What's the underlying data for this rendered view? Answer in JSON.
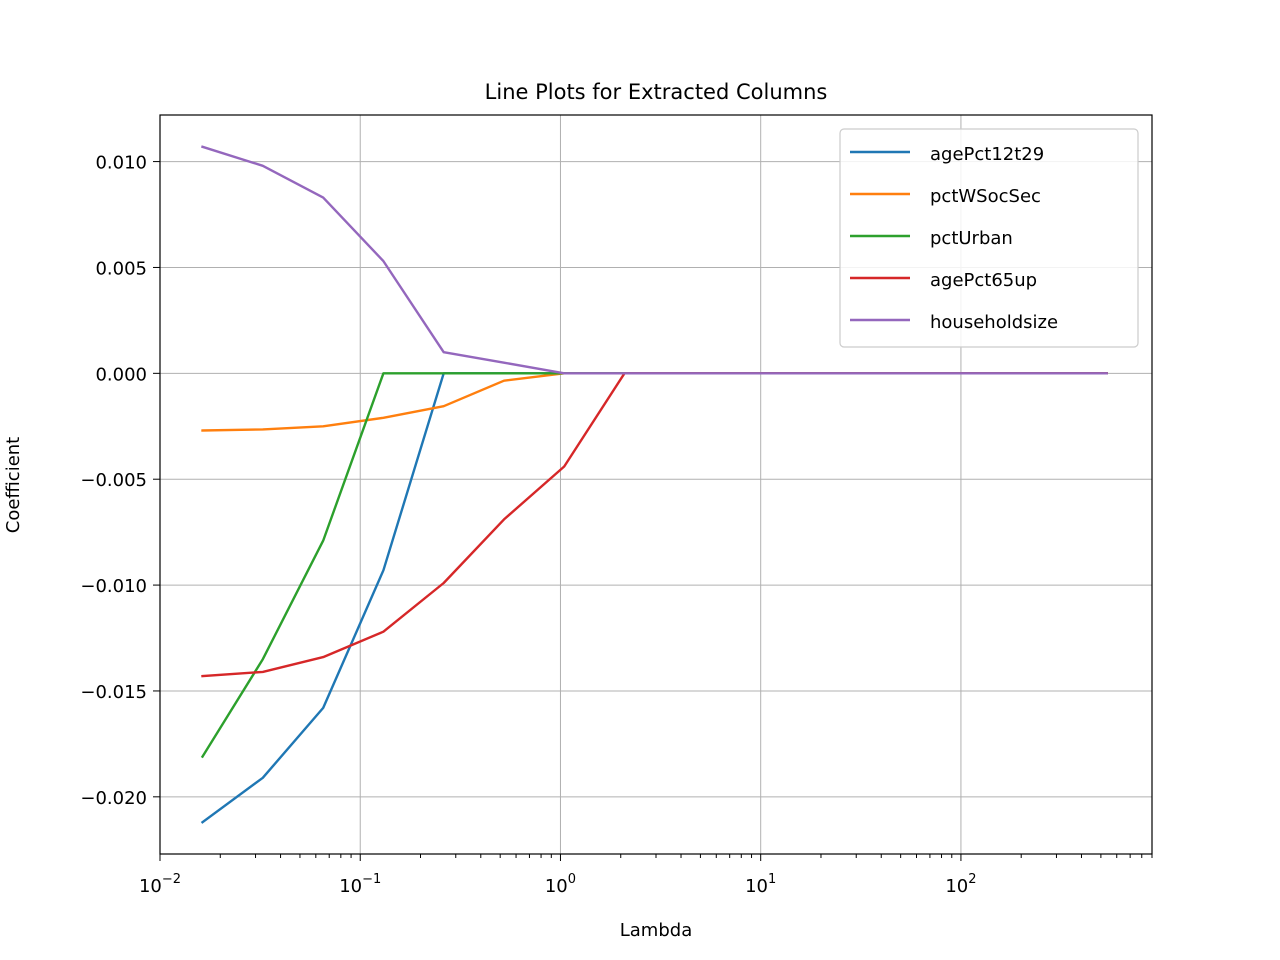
{
  "chart_data": {
    "type": "line",
    "title": "Line Plots for Extracted Columns",
    "xlabel": "Lambda",
    "ylabel": "Coefficient",
    "x_scale": "log",
    "xlim": [
      0.01,
      900
    ],
    "ylim": [
      -0.0227,
      0.0122
    ],
    "grid": true,
    "legend_position": "top-right",
    "x_ticks": [
      {
        "base": "10",
        "exp": "−2",
        "value": 0.01
      },
      {
        "base": "10",
        "exp": "−1",
        "value": 0.1
      },
      {
        "base": "10",
        "exp": "0",
        "value": 1
      },
      {
        "base": "10",
        "exp": "1",
        "value": 10
      },
      {
        "base": "10",
        "exp": "2",
        "value": 100
      }
    ],
    "y_ticks": [
      {
        "label": "0.010",
        "value": 0.01
      },
      {
        "label": "0.005",
        "value": 0.005
      },
      {
        "label": "0.000",
        "value": 0.0
      },
      {
        "label": "−0.005",
        "value": -0.005
      },
      {
        "label": "−0.010",
        "value": -0.01
      },
      {
        "label": "−0.015",
        "value": -0.015
      },
      {
        "label": "−0.020",
        "value": -0.02
      }
    ],
    "x": [
      0.0163,
      0.0326,
      0.0653,
      0.1306,
      0.2611,
      0.5222,
      1.0444,
      2.0888,
      4.1777,
      8.3553,
      16.711,
      33.421,
      66.842,
      133.68,
      267.37,
      534.74
    ],
    "series": [
      {
        "name": "agePct12t29",
        "color": "#1f77b4",
        "values": [
          -0.0212,
          -0.0191,
          -0.0158,
          -0.0093,
          0.0,
          0.0,
          0.0,
          0.0,
          0.0,
          0.0,
          0.0,
          0.0,
          0.0,
          0.0,
          0.0,
          0.0
        ]
      },
      {
        "name": "pctWSocSec",
        "color": "#ff7f0e",
        "values": [
          -0.0027,
          -0.00265,
          -0.0025,
          -0.0021,
          -0.00155,
          -0.00035,
          0.0,
          0.0,
          0.0,
          0.0,
          0.0,
          0.0,
          0.0,
          0.0,
          0.0,
          0.0
        ]
      },
      {
        "name": "pctUrban",
        "color": "#2ca02c",
        "values": [
          -0.0181,
          -0.0135,
          -0.0079,
          0.0,
          0.0,
          0.0,
          0.0,
          0.0,
          0.0,
          0.0,
          0.0,
          0.0,
          0.0,
          0.0,
          0.0,
          0.0
        ]
      },
      {
        "name": "agePct65up",
        "color": "#d62728",
        "values": [
          -0.0143,
          -0.0141,
          -0.0134,
          -0.0122,
          -0.0099,
          -0.0069,
          -0.0044,
          0.0,
          0.0,
          0.0,
          0.0,
          0.0,
          0.0,
          0.0,
          0.0,
          0.0
        ]
      },
      {
        "name": "householdsize",
        "color": "#9467bd",
        "values": [
          0.0107,
          0.0098,
          0.0083,
          0.0053,
          0.001,
          0.0005,
          0.0,
          0.0,
          0.0,
          0.0,
          0.0,
          0.0,
          0.0,
          0.0,
          0.0,
          0.0
        ]
      }
    ]
  }
}
